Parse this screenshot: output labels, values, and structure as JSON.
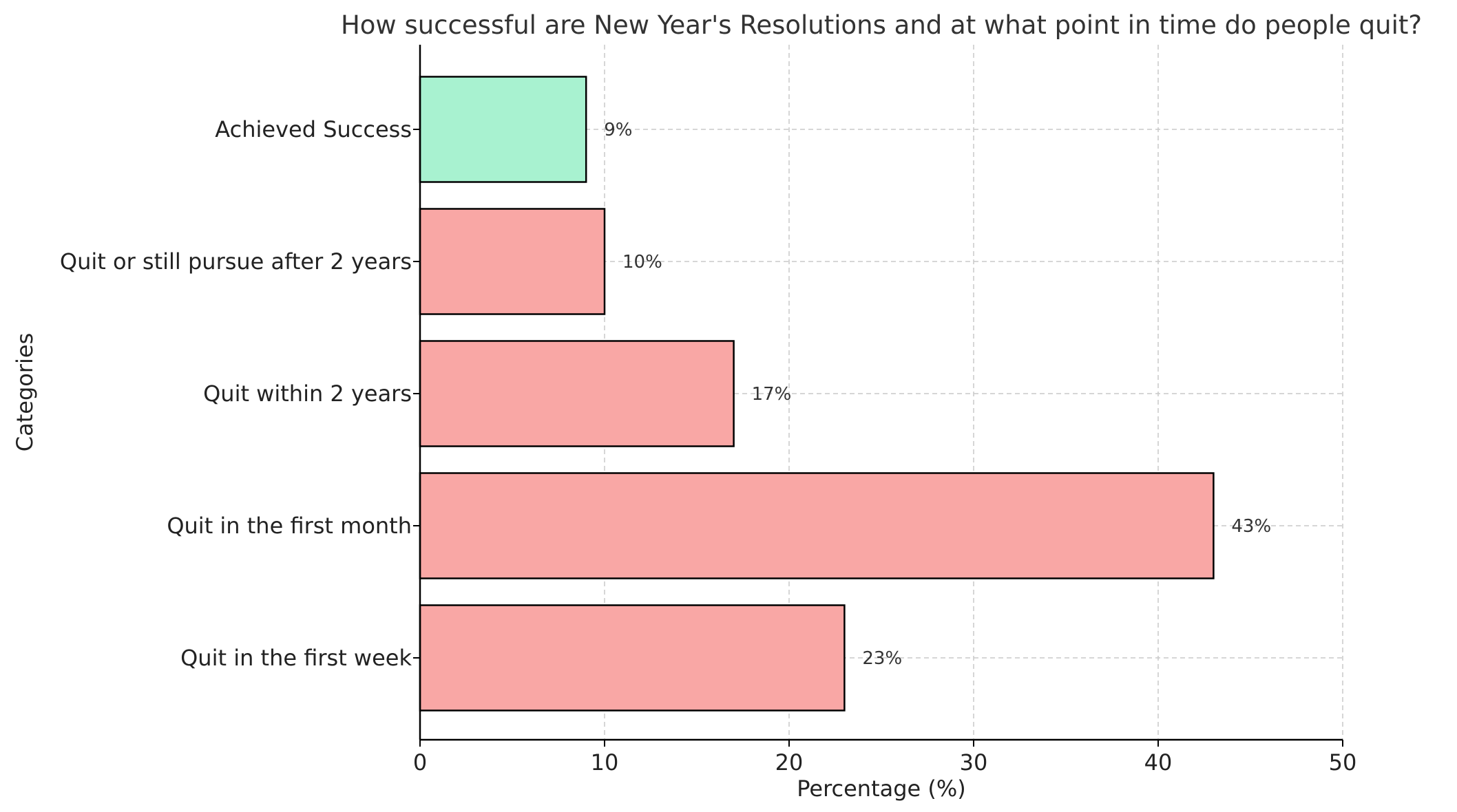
{
  "chart_data": {
    "type": "bar",
    "orientation": "horizontal",
    "title": "How successful are New Year's Resolutions and at what point in time do people quit?",
    "xlabel": "Percentage (%)",
    "ylabel": "Categories",
    "xlim": [
      0,
      50
    ],
    "x_ticks": [
      0,
      10,
      20,
      30,
      40,
      50
    ],
    "grid": true,
    "categories": [
      "Quit in the first week",
      "Quit in the first month",
      "Quit within 2 years",
      "Quit or still pursue after 2 years",
      "Achieved Success"
    ],
    "values": [
      23,
      43,
      17,
      10,
      9
    ],
    "value_labels": [
      "23%",
      "43%",
      "17%",
      "10%",
      "9%"
    ],
    "colors": [
      "#f9a7a5",
      "#f9a7a5",
      "#f9a7a5",
      "#f9a7a5",
      "#a8f2d0"
    ]
  }
}
